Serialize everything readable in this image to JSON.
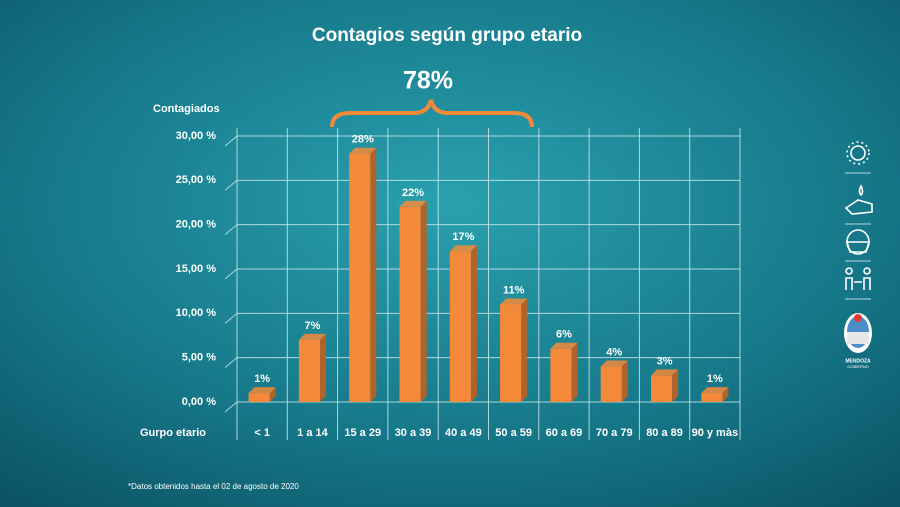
{
  "chart_data": {
    "type": "bar",
    "title": "Contagios según grupo etario",
    "y_label": "Contagiados",
    "x_label": "Gurpo etario",
    "annotation": "78%",
    "footnote": "*Datos obtenidos hasta el 02 de agosto de 2020",
    "logo_text": [
      "MENDOZA",
      "GOBIERNO"
    ],
    "categories": [
      "< 1",
      "1 a 14",
      "15 a 29",
      "30 a 39",
      "40 a 49",
      "50 a 59",
      "60 a 69",
      "70 a 79",
      "80 a 89",
      "90 y màs"
    ],
    "values": [
      1,
      7,
      28,
      22,
      17,
      11,
      6,
      4,
      3,
      1
    ],
    "value_labels": [
      "1%",
      "7%",
      "28%",
      "22%",
      "17%",
      "11%",
      "6%",
      "4%",
      "3%",
      "1%"
    ],
    "color": "#f5893a",
    "ylim": [
      0,
      30
    ],
    "yticks": [
      {
        "value": 0,
        "label": "0,00 %"
      },
      {
        "value": 5,
        "label": "5,00 %"
      },
      {
        "value": 10,
        "label": "10,00 %"
      },
      {
        "value": 15,
        "label": "15,00 %"
      },
      {
        "value": 20,
        "label": "20,00 %"
      },
      {
        "value": 25,
        "label": "25,00 %"
      },
      {
        "value": 30,
        "label": "30,00 %"
      }
    ],
    "grid": true
  }
}
